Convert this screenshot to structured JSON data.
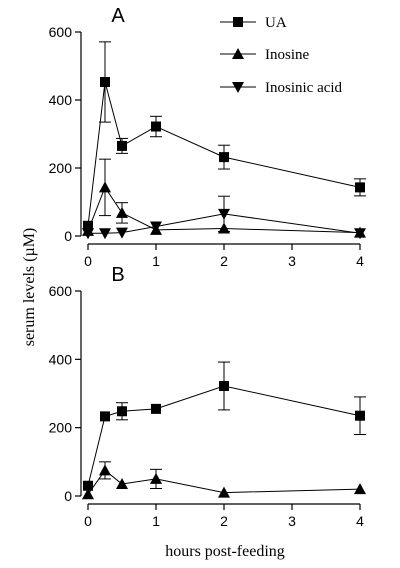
{
  "chart_data": [
    {
      "type": "line",
      "panel_label": "A",
      "xlabel": "hours post-feeding",
      "ylabel": "serum levels (µM)",
      "xlim": [
        0,
        4
      ],
      "ylim": [
        0,
        600
      ],
      "xticks": [
        0,
        1,
        2,
        3,
        4
      ],
      "yticks": [
        0,
        200,
        400,
        600
      ],
      "legend_position": "top-right",
      "series": [
        {
          "name": "UA",
          "marker": "square",
          "x": [
            0,
            0.25,
            0.5,
            1,
            2,
            4
          ],
          "y": [
            30,
            453,
            265,
            322,
            232,
            143
          ],
          "err": [
            0,
            118,
            22,
            30,
            35,
            25
          ]
        },
        {
          "name": "Inosine",
          "marker": "triangle-up",
          "x": [
            0,
            0.25,
            0.5,
            1,
            2,
            4
          ],
          "y": [
            15,
            143,
            68,
            18,
            22,
            10
          ],
          "err": [
            0,
            83,
            30,
            0,
            0,
            0
          ]
        },
        {
          "name": "Inosinic acid",
          "marker": "triangle-down",
          "x": [
            0,
            0.25,
            0.5,
            1,
            2,
            4
          ],
          "y": [
            8,
            8,
            10,
            28,
            65,
            8
          ],
          "err": [
            0,
            0,
            0,
            0,
            52,
            0
          ]
        }
      ]
    },
    {
      "type": "line",
      "panel_label": "B",
      "xlim": [
        0,
        4
      ],
      "ylim": [
        0,
        600
      ],
      "xticks": [
        0,
        1,
        2,
        3,
        4
      ],
      "yticks": [
        0,
        200,
        400,
        600
      ],
      "series": [
        {
          "name": "UA",
          "marker": "square",
          "x": [
            0,
            0.25,
            0.5,
            1,
            2,
            4
          ],
          "y": [
            30,
            233,
            248,
            255,
            322,
            235
          ],
          "err": [
            0,
            0,
            25,
            0,
            70,
            55
          ]
        },
        {
          "name": "Inosine",
          "marker": "triangle-up",
          "x": [
            0,
            0.25,
            0.5,
            1,
            2,
            4
          ],
          "y": [
            5,
            75,
            35,
            50,
            10,
            20
          ],
          "err": [
            0,
            25,
            0,
            28,
            0,
            0
          ]
        }
      ]
    }
  ]
}
